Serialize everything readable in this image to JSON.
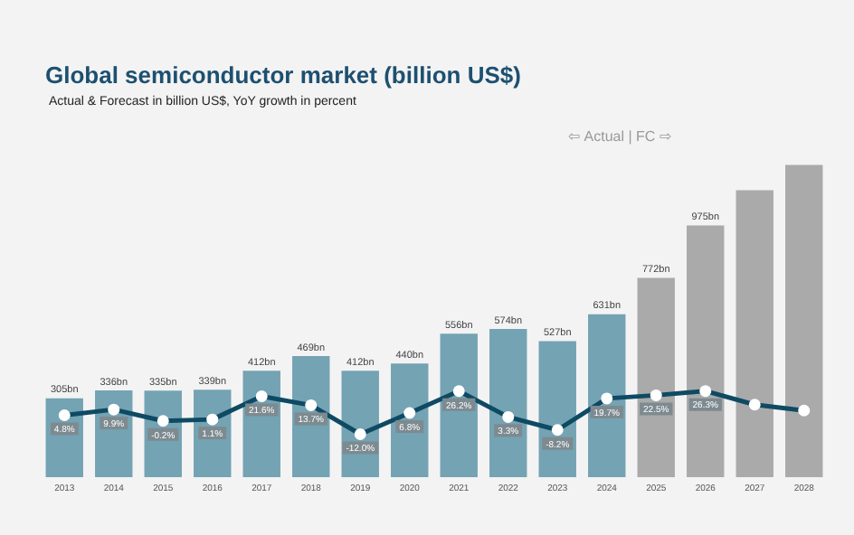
{
  "chart_data": {
    "type": "bar",
    "title": "Global semiconductor market (billion US$)",
    "subtitle": "Actual & Forecast in billion US$, YoY growth in percent",
    "annotations": [
      "⇦ Actual | FC ⇨"
    ],
    "categories": [
      "2013",
      "2014",
      "2015",
      "2016",
      "2017",
      "2018",
      "2019",
      "2020",
      "2021",
      "2022",
      "2023",
      "2024",
      "2025",
      "2026",
      "2027",
      "2028"
    ],
    "tick_labels": "x",
    "grid": false,
    "legend": false,
    "series": [
      {
        "colors": [
          "#74a3b3",
          "#74a3b3",
          "#74a3b3",
          "#74a3b3",
          "#74a3b3",
          "#74a3b3",
          "#74a3b3",
          "#74a3b3",
          "#74a3b3",
          "#74a3b3",
          "#74a3b3",
          "#74a3b3",
          "#aaaaaa",
          "#aaaaaa",
          "#aaaaaa",
          "#aaaaaa"
        ],
        "values": [
          305,
          336,
          335,
          339,
          412,
          469,
          412,
          440,
          556,
          574,
          527,
          631,
          772,
          975,
          1111,
          1209
        ],
        "value_labels": [
          "305bn",
          "336bn",
          "335bn",
          "339bn",
          "412bn",
          "469bn",
          "412bn",
          "440bn",
          "556bn",
          "574bn",
          "527bn",
          "631bn",
          "772bn",
          "975bn",
          null,
          null
        ]
      },
      {
        "type": "line",
        "axis": "y2",
        "color": "#0e4a63",
        "marker": "circle",
        "values": [
          4.8,
          9.9,
          -0.2,
          1.1,
          21.6,
          13.7,
          -12.0,
          6.8,
          26.2,
          3.3,
          -8.2,
          19.7,
          22.5,
          26.3,
          14.2,
          9.0
        ],
        "value_labels": [
          "4.8%",
          "9.9%",
          "-0.2%",
          "1.1%",
          "21.6%",
          "13.7%",
          "-12.0%",
          "6.8%",
          "26.2%",
          "3.3%",
          "-8.2%",
          "19.7%",
          "22.5%",
          "26.3%",
          null,
          null
        ]
      }
    ]
  }
}
